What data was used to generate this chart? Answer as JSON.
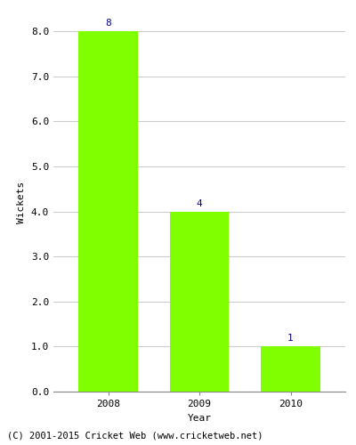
{
  "categories": [
    "2008",
    "2009",
    "2010"
  ],
  "values": [
    8,
    4,
    1
  ],
  "bar_color": "#7FFF00",
  "bar_edge_color": "#7FFF00",
  "label_color": "#00008B",
  "label_fontsize": 8,
  "ylabel": "Wickets",
  "xlabel": "Year",
  "ylim": [
    0,
    8.4
  ],
  "yticks": [
    0.0,
    1.0,
    2.0,
    3.0,
    4.0,
    5.0,
    6.0,
    7.0,
    8.0
  ],
  "grid_color": "#cccccc",
  "background_color": "#ffffff",
  "footer_text": "(C) 2001-2015 Cricket Web (www.cricketweb.net)",
  "footer_fontsize": 7.5,
  "bar_width": 0.65,
  "axis_label_fontsize": 8,
  "tick_label_fontsize": 8
}
